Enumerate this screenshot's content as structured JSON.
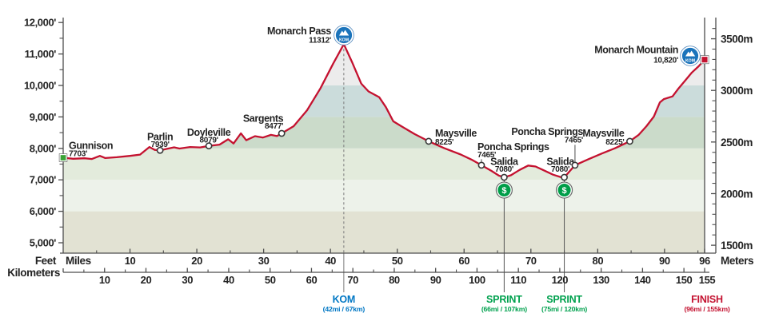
{
  "chart_data": {
    "type": "area",
    "description": "Cycling stage elevation profile from Gunnison to Monarch Mountain",
    "axes": {
      "left_unit_label": "Feet",
      "right_unit_label": "Meters",
      "top_x_unit_label": "Miles",
      "bottom_x_unit_label": "Kilometers",
      "feet_ticks": [
        {
          "v": 12000,
          "label": "12,000'"
        },
        {
          "v": 11000,
          "label": "11,000'"
        },
        {
          "v": 10000,
          "label": "10,000'"
        },
        {
          "v": 9000,
          "label": "9,000'"
        },
        {
          "v": 8000,
          "label": "8,000'"
        },
        {
          "v": 7000,
          "label": "7,000'"
        },
        {
          "v": 6000,
          "label": "6,000'"
        },
        {
          "v": 5000,
          "label": "5,000'"
        }
      ],
      "feet_minor_step": 500,
      "meters_ticks": [
        {
          "v": 3500,
          "label": "3500m"
        },
        {
          "v": 3000,
          "label": "3000m"
        },
        {
          "v": 2500,
          "label": "2500m"
        },
        {
          "v": 2000,
          "label": "2000m"
        },
        {
          "v": 1500,
          "label": "1500m"
        }
      ],
      "meters_minor_step": 100,
      "miles_range": [
        0,
        96
      ],
      "miles_major_ticks": [
        10,
        20,
        30,
        40,
        50,
        60,
        70,
        80,
        90,
        96
      ],
      "miles_minor_step": 5,
      "km_range": [
        0,
        155
      ],
      "km_major_ticks": [
        10,
        20,
        30,
        40,
        50,
        60,
        70,
        80,
        90,
        100,
        110,
        120,
        130,
        140,
        150,
        155
      ],
      "km_minor_step": 5
    },
    "elevation_bands": [
      {
        "from_ft": 4600,
        "to_ft": 6000,
        "color": "#e2e2d3"
      },
      {
        "from_ft": 6000,
        "to_ft": 7000,
        "color": "#edf2ea"
      },
      {
        "from_ft": 7000,
        "to_ft": 8000,
        "color": "#e3ebdc"
      },
      {
        "from_ft": 8000,
        "to_ft": 9000,
        "color": "#cbdbca"
      },
      {
        "from_ft": 9000,
        "to_ft": 10000,
        "color": "#cbdcdb"
      },
      {
        "from_ft": 10000,
        "to_ft": 11600,
        "color": "#ececec"
      }
    ],
    "profile_miles_feet": [
      [
        0,
        7703
      ],
      [
        1.5,
        7670
      ],
      [
        3.2,
        7685
      ],
      [
        4.3,
        7662
      ],
      [
        5.5,
        7762
      ],
      [
        6.3,
        7692
      ],
      [
        8,
        7718
      ],
      [
        10,
        7762
      ],
      [
        11.5,
        7802
      ],
      [
        12.9,
        8042
      ],
      [
        13.7,
        7952
      ],
      [
        14.5,
        7939
      ],
      [
        15.6,
        7988
      ],
      [
        16.6,
        8032
      ],
      [
        17.4,
        7996
      ],
      [
        19,
        8044
      ],
      [
        20.5,
        8030
      ],
      [
        21.8,
        8079
      ],
      [
        23.4,
        8120
      ],
      [
        24.7,
        8290
      ],
      [
        25.5,
        8155
      ],
      [
        26.6,
        8478
      ],
      [
        27.4,
        8258
      ],
      [
        28.7,
        8388
      ],
      [
        29.9,
        8346
      ],
      [
        31.1,
        8428
      ],
      [
        32,
        8390
      ],
      [
        32.7,
        8477
      ],
      [
        34.5,
        8705
      ],
      [
        36.5,
        9210
      ],
      [
        38.5,
        9905
      ],
      [
        40.4,
        10690
      ],
      [
        42,
        11312
      ],
      [
        43.2,
        10760
      ],
      [
        44.6,
        10060
      ],
      [
        45.7,
        9810
      ],
      [
        47.3,
        9625
      ],
      [
        48.3,
        9310
      ],
      [
        49.4,
        8860
      ],
      [
        50.6,
        8705
      ],
      [
        52.6,
        8455
      ],
      [
        54.7,
        8225
      ],
      [
        57,
        8010
      ],
      [
        59.5,
        7805
      ],
      [
        61.1,
        7645
      ],
      [
        62.6,
        7465
      ],
      [
        64.1,
        7285
      ],
      [
        65.2,
        7135
      ],
      [
        66,
        7080
      ],
      [
        67,
        7145
      ],
      [
        68.3,
        7315
      ],
      [
        69.6,
        7455
      ],
      [
        70.7,
        7425
      ],
      [
        71.9,
        7305
      ],
      [
        73.3,
        7165
      ],
      [
        74.4,
        7092
      ],
      [
        75,
        7080
      ],
      [
        76.6,
        7465
      ],
      [
        78.6,
        7655
      ],
      [
        80.6,
        7835
      ],
      [
        82.6,
        8005
      ],
      [
        84.8,
        8225
      ],
      [
        86.1,
        8425
      ],
      [
        87.3,
        8705
      ],
      [
        88.4,
        9010
      ],
      [
        89.3,
        9460
      ],
      [
        89.9,
        9565
      ],
      [
        91.2,
        9652
      ],
      [
        92.1,
        9905
      ],
      [
        93.1,
        10160
      ],
      [
        94.1,
        10410
      ],
      [
        95.1,
        10610
      ],
      [
        96,
        10820
      ]
    ],
    "waypoints": [
      {
        "id": "gunnison",
        "name": "Gunnison",
        "elevation_label": "7703'",
        "mile": 0,
        "elevation_ft": 7703,
        "marker": "start-square"
      },
      {
        "id": "parlin",
        "name": "Parlin",
        "elevation_label": "7939'",
        "mile": 14.5,
        "elevation_ft": 7939,
        "marker": "circle"
      },
      {
        "id": "doyleville",
        "name": "Doyleville",
        "elevation_label": "8079'",
        "mile": 21.8,
        "elevation_ft": 8079,
        "marker": "circle"
      },
      {
        "id": "sargents",
        "name": "Sargents",
        "elevation_label": "8477'",
        "mile": 32.7,
        "elevation_ft": 8477,
        "marker": "circle"
      },
      {
        "id": "monarch_pass",
        "name": "Monarch Pass",
        "elevation_label": "11312'",
        "mile": 42,
        "elevation_ft": 11312,
        "marker": "none",
        "badge": "kom"
      },
      {
        "id": "maysville_west",
        "name": "Maysville",
        "elevation_label": "8225'",
        "mile": 54.7,
        "elevation_ft": 8225,
        "marker": "circle"
      },
      {
        "id": "poncha_springs_west",
        "name": "Poncha Springs",
        "elevation_label": "7465'",
        "mile": 62.6,
        "elevation_ft": 7465,
        "marker": "circle"
      },
      {
        "id": "salida_west",
        "name": "Salida",
        "elevation_label": "7080'",
        "mile": 66,
        "elevation_ft": 7080,
        "marker": "circle",
        "badge": "sprint"
      },
      {
        "id": "salida_east",
        "name": "Salida",
        "elevation_label": "7080'",
        "mile": 75,
        "elevation_ft": 7080,
        "marker": "circle",
        "badge": "sprint"
      },
      {
        "id": "poncha_springs_east",
        "name": "Poncha Springs",
        "elevation_label": "7465'",
        "mile": 76.6,
        "elevation_ft": 7465,
        "marker": "circle"
      },
      {
        "id": "maysville_east",
        "name": "Maysville",
        "elevation_label": "8225'",
        "mile": 84.8,
        "elevation_ft": 8225,
        "marker": "circle"
      },
      {
        "id": "monarch_mountain",
        "name": "Monarch Mountain",
        "elevation_label": "10,820'",
        "mile": 96,
        "elevation_ft": 10820,
        "marker": "finish-square",
        "badge": "kom"
      }
    ],
    "events": [
      {
        "id": "kom",
        "label": "KOM",
        "sublabel": "(42mi / 67km)",
        "mile": 42,
        "color": "#0077c4",
        "line": "dashed-full"
      },
      {
        "id": "sprint1",
        "label": "SPRINT",
        "sublabel": "(66mi / 107km)",
        "mile": 66,
        "color": "#00a14e",
        "line": "solid-from-marker"
      },
      {
        "id": "sprint2",
        "label": "SPRINT",
        "sublabel": "(75mi / 120km)",
        "mile": 75,
        "color": "#00a14e",
        "line": "solid-from-marker"
      },
      {
        "id": "finish",
        "label": "FINISH",
        "sublabel": "(96mi / 155km)",
        "mile": 96,
        "color": "#c41230",
        "line": "none"
      }
    ],
    "badge_labels": {
      "kom": "KOM",
      "sprint": "$"
    },
    "colors": {
      "profile_line": "#c41230",
      "start_marker_green": "#3aa336",
      "finish_marker_red": "#c41230",
      "kom_badge_blue": "#1b74bb",
      "sprint_badge_green": "#009e49",
      "kom_text_blue": "#0077c4",
      "sprint_text_green": "#00a14e",
      "finish_text_red": "#c41230",
      "axis": "#4d4d4d",
      "text": "#232323"
    }
  }
}
